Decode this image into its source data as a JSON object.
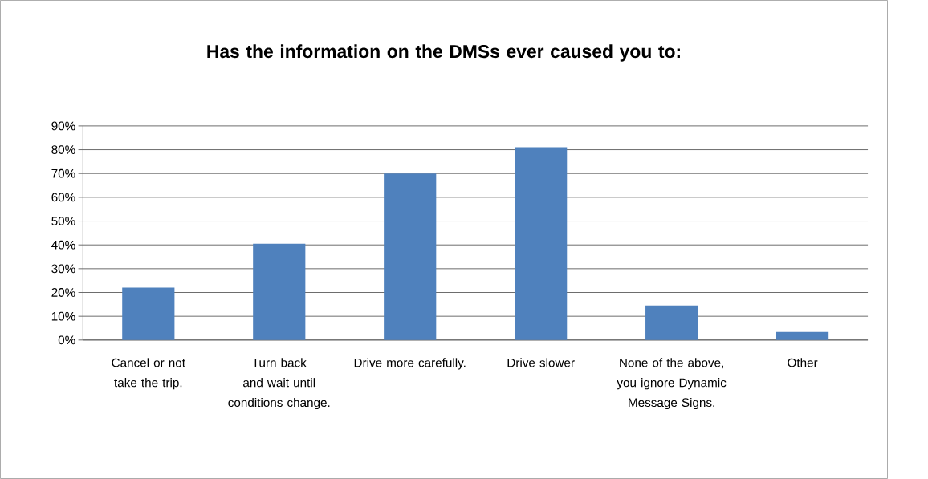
{
  "chart_data": {
    "type": "bar",
    "title": "Has the information on the DMSs ever caused you to:",
    "categories": [
      "Cancel or not take the trip.",
      "Turn back and wait until conditions change.",
      "Drive more carefully.",
      "Drive slower",
      "None of the above, you ignore Dynamic Message Signs.",
      "Other"
    ],
    "values": [
      22,
      40.5,
      70,
      81,
      14.5,
      3.4
    ],
    "color": "#4f81bd",
    "ylim": [
      0,
      90
    ],
    "yticks": [
      {
        "value": 0,
        "label": "0%"
      },
      {
        "value": 10,
        "label": "10%"
      },
      {
        "value": 20,
        "label": "20%"
      },
      {
        "value": 30,
        "label": "30%"
      },
      {
        "value": 40,
        "label": "40%"
      },
      {
        "value": 50,
        "label": "50%"
      },
      {
        "value": 60,
        "label": "60%"
      },
      {
        "value": 70,
        "label": "70%"
      },
      {
        "value": 80,
        "label": "80%"
      },
      {
        "value": 90,
        "label": "90%"
      }
    ],
    "grid": "y"
  }
}
